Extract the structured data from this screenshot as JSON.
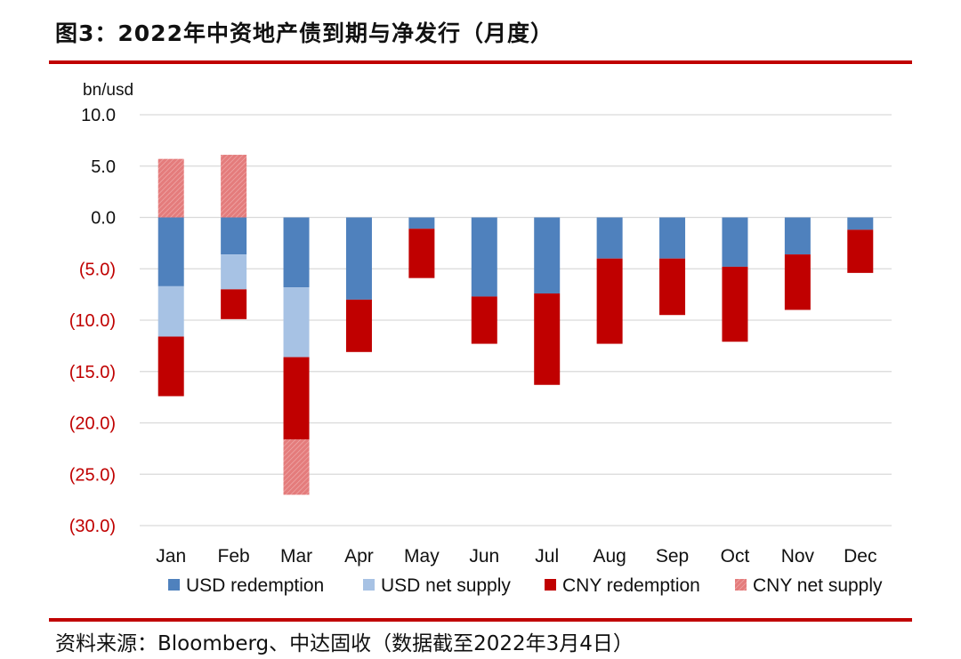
{
  "title": "图3：2022年中资地产债到期与净发行（月度）",
  "source": "资料来源：Bloomberg、中达固收（数据截至2022年3月4日）",
  "colors": {
    "usd_redemption": "#4F81BD",
    "usd_net_supply": "#A7C2E4",
    "cny_redemption": "#C00000",
    "cny_net_supply": "#E47C7C",
    "rule": "#C00000",
    "negative_tick": "#C00000"
  },
  "chart_data": {
    "type": "bar",
    "stacked": true,
    "unit_label": "bn/usd",
    "categories": [
      "Jan",
      "Feb",
      "Mar",
      "Apr",
      "May",
      "Jun",
      "Jul",
      "Aug",
      "Sep",
      "Oct",
      "Nov",
      "Dec"
    ],
    "y_ticks": [
      "10.0",
      "5.0",
      "0.0",
      "(5.0)",
      "(10.0)",
      "(15.0)",
      "(20.0)",
      "(25.0)",
      "(30.0)"
    ],
    "ylim": [
      -30,
      10
    ],
    "grid": true,
    "legend_position": "bottom",
    "series": [
      {
        "name": "USD redemption",
        "values": [
          -6.7,
          -3.6,
          -6.8,
          -8.0,
          -1.1,
          -7.7,
          -7.4,
          -4.0,
          -4.0,
          -4.8,
          -3.6,
          -1.2
        ]
      },
      {
        "name": "USD net supply",
        "values": [
          -4.9,
          -3.4,
          -6.8,
          0,
          0,
          0,
          0,
          0,
          0,
          0,
          0,
          0
        ]
      },
      {
        "name": "CNY redemption",
        "values": [
          -5.8,
          -2.9,
          -8.0,
          -5.1,
          -4.8,
          -4.6,
          -8.9,
          -8.3,
          -5.5,
          -7.3,
          -5.4,
          -4.2
        ]
      },
      {
        "name": "CNY net supply",
        "values": [
          5.7,
          6.1,
          -5.4,
          0,
          0,
          0,
          0,
          0,
          0,
          0,
          0,
          0
        ]
      }
    ]
  }
}
